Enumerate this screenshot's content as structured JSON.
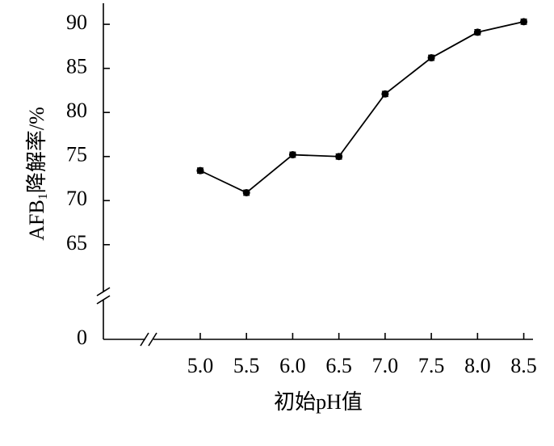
{
  "chart_data": {
    "type": "line",
    "x_label": "初始pH值",
    "y_label": {
      "main": "AFB",
      "sub": "1",
      "rest": "降解率/%"
    },
    "x": [
      5.0,
      5.5,
      6.0,
      6.5,
      7.0,
      7.5,
      8.0,
      8.5
    ],
    "series": [
      {
        "color": "#000000",
        "values": [
          73.4,
          70.9,
          75.2,
          75.0,
          82.1,
          86.2,
          89.1,
          90.3
        ],
        "errors": [
          0.3,
          0.3,
          0.3,
          0.3,
          0.3,
          0.3,
          0.3,
          0.3
        ]
      }
    ],
    "xlim": [
      4.45,
      8.6
    ],
    "xticks": [
      {
        "value": 5.0,
        "label": "5.0"
      },
      {
        "value": 5.5,
        "label": "5.5"
      },
      {
        "value": 6.0,
        "label": "6.0"
      },
      {
        "value": 6.5,
        "label": "6.5"
      },
      {
        "value": 7.0,
        "label": "7.0"
      },
      {
        "value": 7.5,
        "label": "7.5"
      },
      {
        "value": 8.0,
        "label": "8.0"
      },
      {
        "value": 8.5,
        "label": "8.5"
      }
    ],
    "ylim": [
      59.3,
      92.3
    ],
    "yticks": [
      65,
      70,
      75,
      80,
      85,
      90
    ],
    "ylim_lower": [
      0,
      4
    ],
    "yticks_lower": [
      0
    ],
    "grid": false
  }
}
